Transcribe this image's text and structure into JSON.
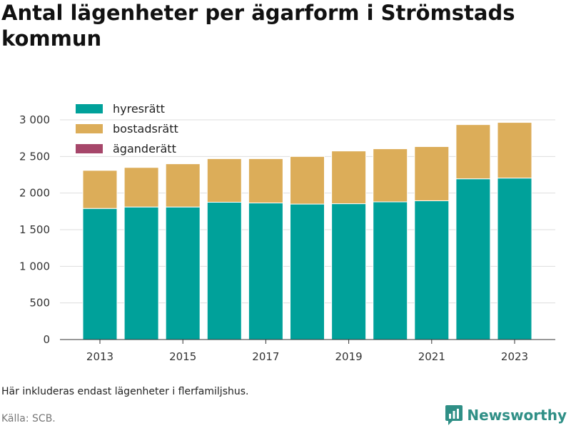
{
  "title": "Antal lägenheter per ägarform i Strömstads kommun",
  "note": "Här inkluderas endast lägenheter i flerfamiljshus.",
  "source": "Källa: SCB.",
  "brand": {
    "name": "Newsworthy",
    "icon": "newsworthy-logo-icon",
    "color": "#2f8f86"
  },
  "chart_data": {
    "type": "bar",
    "stacked": true,
    "categories": [
      "2013",
      "2014",
      "2015",
      "2016",
      "2017",
      "2018",
      "2019",
      "2020",
      "2021",
      "2022",
      "2023"
    ],
    "x_tick_labels": [
      "2013",
      "2015",
      "2017",
      "2019",
      "2021",
      "2023"
    ],
    "series": [
      {
        "name": "hyresrätt",
        "color": "#00a19a",
        "values": [
          1790,
          1810,
          1810,
          1875,
          1865,
          1850,
          1855,
          1880,
          1895,
          2195,
          2205
        ]
      },
      {
        "name": "bostadsrätt",
        "color": "#dcad59",
        "values": [
          520,
          540,
          590,
          595,
          605,
          650,
          720,
          725,
          740,
          740,
          760
        ]
      },
      {
        "name": "äganderätt",
        "color": "#a6466a",
        "values": [
          0,
          0,
          0,
          0,
          0,
          0,
          0,
          0,
          0,
          0,
          0
        ]
      }
    ],
    "y_ticks": [
      0,
      500,
      1000,
      1500,
      2000,
      2500,
      3000
    ],
    "y_tick_labels": [
      "0",
      "500",
      "1 000",
      "1 500",
      "2 000",
      "2 500",
      "3 000"
    ],
    "ylim": [
      0,
      3100
    ],
    "grid": true,
    "legend": "top-left"
  }
}
